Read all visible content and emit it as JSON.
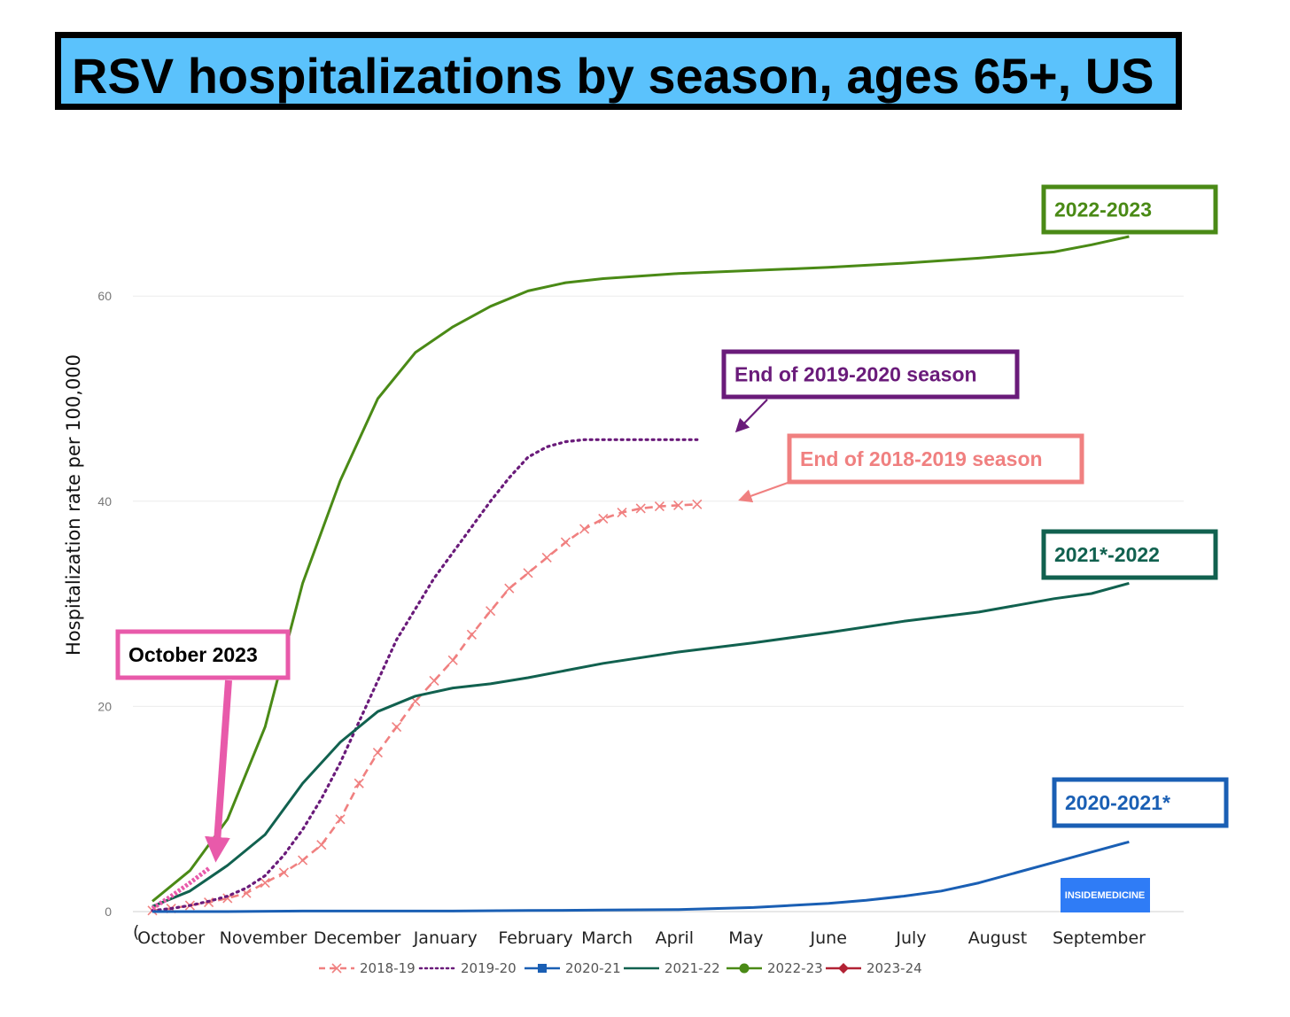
{
  "title": "RSV hospitalizations by season, ages 65+, US",
  "chart_data": {
    "type": "line",
    "title": "RSV hospitalizations by season, ages 65+, US",
    "ylabel": "Hospitalization rate per 100,000",
    "xlabel": "",
    "ylim": [
      0,
      60
    ],
    "yticks": [
      0,
      20,
      40,
      60
    ],
    "grid": true,
    "legend_position": "bottom",
    "months": [
      "October",
      "November",
      "December",
      "January",
      "February",
      "March",
      "April",
      "May",
      "June",
      "July",
      "August",
      "September"
    ],
    "x_axis_start_label": "(",
    "series": [
      {
        "name": "2018-19",
        "color": "#f08080",
        "style": "dashed-x",
        "x": [
          0,
          1,
          2,
          3,
          4,
          5,
          6,
          7,
          8,
          9,
          10,
          11,
          12,
          13,
          14,
          15,
          16,
          17,
          18,
          19,
          20,
          21,
          22,
          23,
          24,
          25,
          26,
          27,
          28,
          29
        ],
        "y": [
          0.1,
          0.3,
          0.6,
          0.9,
          1.3,
          1.8,
          2.8,
          3.8,
          5.0,
          6.5,
          9.0,
          12.5,
          15.5,
          18.0,
          20.5,
          22.5,
          24.5,
          27.0,
          29.3,
          31.5,
          33.0,
          34.5,
          36.0,
          37.3,
          38.3,
          38.9,
          39.3,
          39.5,
          39.6,
          39.7
        ]
      },
      {
        "name": "2019-20",
        "color": "#6a1b7a",
        "style": "dotted",
        "x": [
          0,
          1,
          2,
          3,
          4,
          5,
          6,
          7,
          8,
          9,
          10,
          11,
          12,
          13,
          14,
          15,
          16,
          17,
          18,
          19,
          20,
          21,
          22,
          23,
          24,
          25,
          26,
          27,
          28,
          29
        ],
        "y": [
          0.1,
          0.3,
          0.6,
          1.0,
          1.5,
          2.3,
          3.5,
          5.5,
          8.0,
          11.0,
          14.5,
          18.5,
          22.5,
          26.5,
          29.5,
          32.5,
          35.0,
          37.5,
          40.0,
          42.3,
          44.3,
          45.3,
          45.8,
          46.0,
          46.0,
          46.0,
          46.0,
          46.0,
          46.0,
          46.0
        ]
      },
      {
        "name": "2020-21",
        "color": "#1a5fb4",
        "style": "solid",
        "x": [
          0,
          4,
          8,
          12,
          16,
          20,
          24,
          28,
          32,
          36,
          38,
          40,
          42,
          44,
          46,
          48,
          50,
          52
        ],
        "y": [
          0.0,
          0.0,
          0.05,
          0.05,
          0.05,
          0.1,
          0.15,
          0.2,
          0.4,
          0.8,
          1.1,
          1.5,
          2.0,
          2.8,
          3.8,
          4.8,
          5.8,
          6.8
        ]
      },
      {
        "name": "2021-22",
        "color": "#11614f",
        "style": "solid",
        "x": [
          0,
          2,
          4,
          6,
          8,
          10,
          12,
          14,
          16,
          18,
          20,
          22,
          24,
          28,
          32,
          36,
          40,
          44,
          48,
          50,
          52
        ],
        "y": [
          0.5,
          2.0,
          4.5,
          7.5,
          12.5,
          16.5,
          19.5,
          21.0,
          21.8,
          22.2,
          22.8,
          23.5,
          24.2,
          25.3,
          26.2,
          27.2,
          28.3,
          29.2,
          30.5,
          31.0,
          32.0
        ]
      },
      {
        "name": "2022-23",
        "color": "#4a8a16",
        "style": "solid",
        "x": [
          0,
          2,
          4,
          6,
          8,
          10,
          12,
          14,
          16,
          18,
          20,
          22,
          24,
          28,
          32,
          36,
          40,
          44,
          48,
          50,
          52
        ],
        "y": [
          1.0,
          4.0,
          9.0,
          18.0,
          32.0,
          42.0,
          50.0,
          54.5,
          57.0,
          59.0,
          60.5,
          61.3,
          61.7,
          62.2,
          62.5,
          62.8,
          63.2,
          63.7,
          64.3,
          65.0,
          65.8
        ]
      },
      {
        "name": "2023-24",
        "color": "#b22234",
        "style": "solid",
        "x": [
          0,
          1,
          2,
          3
        ],
        "y": [
          0.3,
          1.5,
          2.8,
          4.2
        ]
      }
    ],
    "annotations": {
      "label_2022_2023": "2022-2023",
      "end_2019_2020": "End of 2019-2020 season",
      "end_2018_2019": "End of 2018-2019 season",
      "label_2021_2022": "2021*-2022",
      "label_2020_2021": "2020-2021*",
      "october_2023": "October 2023"
    },
    "annotation_colors": {
      "label_2022_2023": "#4a8a16",
      "end_2019_2020": "#6a1b7a",
      "end_2018_2019": "#f08080",
      "label_2021_2022": "#11614f",
      "label_2020_2021": "#1a5fb4",
      "october_2023": "#e85aaa"
    }
  },
  "logo": {
    "text": "INSIDEMEDICINE",
    "color": "#2f7cf6"
  }
}
